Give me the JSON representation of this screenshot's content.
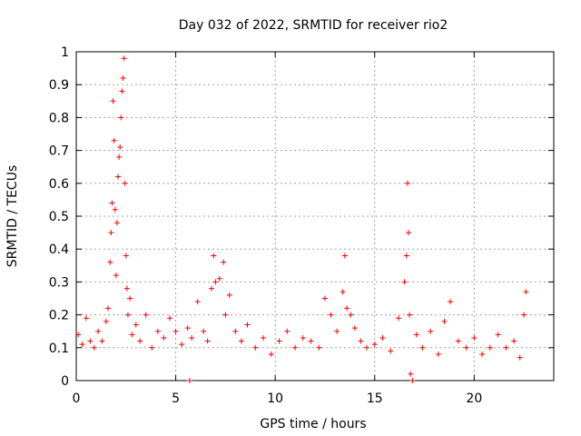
{
  "chart_data": {
    "type": "scatter",
    "title": "Day 032 of 2022, SRMTID for receiver rio2",
    "xlabel": "GPS time / hours",
    "ylabel": "SRMTID / TECUs",
    "xlim": [
      0,
      24
    ],
    "ylim": [
      0,
      1
    ],
    "xticks": [
      0,
      5,
      10,
      15,
      20
    ],
    "yticks": [
      0,
      0.1,
      0.2,
      0.3,
      0.4,
      0.5,
      0.6,
      0.7,
      0.8,
      0.9,
      1
    ],
    "grid": true,
    "marker": "plus",
    "color": "#ff0000",
    "series": [
      {
        "name": "rio2",
        "x": [
          0.1,
          0.3,
          0.5,
          0.7,
          0.9,
          1.1,
          1.3,
          1.5,
          1.6,
          1.7,
          1.75,
          1.8,
          1.85,
          1.9,
          1.95,
          2.0,
          2.05,
          2.1,
          2.15,
          2.2,
          2.25,
          2.3,
          2.35,
          2.4,
          2.45,
          2.5,
          2.55,
          2.6,
          2.7,
          2.8,
          3.0,
          3.2,
          3.5,
          3.8,
          4.1,
          4.4,
          4.7,
          5.0,
          5.3,
          5.6,
          5.7,
          5.8,
          6.1,
          6.4,
          6.6,
          6.8,
          6.9,
          7.0,
          7.2,
          7.4,
          7.5,
          7.7,
          8.0,
          8.3,
          8.6,
          9.0,
          9.4,
          9.8,
          10.2,
          10.6,
          11.0,
          11.4,
          11.8,
          12.2,
          12.5,
          12.8,
          13.1,
          13.4,
          13.5,
          13.6,
          13.8,
          14.0,
          14.3,
          14.6,
          15.0,
          15.4,
          15.8,
          16.2,
          16.5,
          16.6,
          16.65,
          16.7,
          16.75,
          16.8,
          16.9,
          17.1,
          17.4,
          17.8,
          18.2,
          18.5,
          18.8,
          19.2,
          19.6,
          20.0,
          20.4,
          20.8,
          21.2,
          21.6,
          22.0,
          22.3,
          22.5,
          22.6
        ],
        "y": [
          0.14,
          0.11,
          0.19,
          0.12,
          0.1,
          0.15,
          0.12,
          0.18,
          0.22,
          0.36,
          0.45,
          0.54,
          0.85,
          0.73,
          0.52,
          0.32,
          0.48,
          0.62,
          0.68,
          0.71,
          0.8,
          0.88,
          0.92,
          0.98,
          0.6,
          0.38,
          0.28,
          0.2,
          0.25,
          0.14,
          0.17,
          0.12,
          0.2,
          0.1,
          0.15,
          0.13,
          0.19,
          0.15,
          0.11,
          0.16,
          0.0,
          0.13,
          0.24,
          0.15,
          0.12,
          0.28,
          0.38,
          0.3,
          0.31,
          0.36,
          0.2,
          0.26,
          0.15,
          0.12,
          0.17,
          0.1,
          0.13,
          0.08,
          0.12,
          0.15,
          0.1,
          0.13,
          0.12,
          0.1,
          0.25,
          0.2,
          0.15,
          0.27,
          0.38,
          0.22,
          0.2,
          0.16,
          0.12,
          0.1,
          0.11,
          0.13,
          0.09,
          0.19,
          0.3,
          0.38,
          0.6,
          0.45,
          0.2,
          0.02,
          0.0,
          0.14,
          0.1,
          0.15,
          0.08,
          0.18,
          0.24,
          0.12,
          0.1,
          0.13,
          0.08,
          0.1,
          0.14,
          0.1,
          0.12,
          0.07,
          0.2,
          0.27
        ]
      }
    ]
  }
}
